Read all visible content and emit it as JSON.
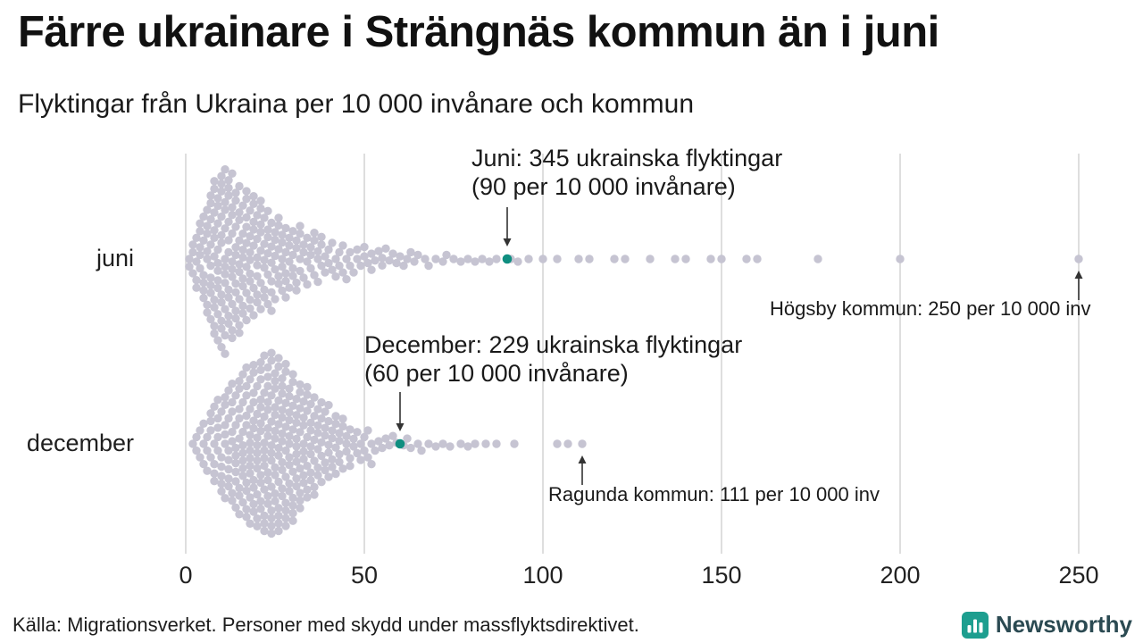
{
  "branding": {
    "name": "Newsworthy"
  },
  "colors": {
    "dot": "#c6c4d2",
    "highlight": "#0f8e80",
    "grid": "#d6d6d6",
    "annotation_arrow": "#333333",
    "logo": "#1d9e8f",
    "logo_text": "#2b4a52",
    "title_text": "#111111"
  },
  "chart_data": {
    "type": "beeswarm",
    "title": "Färre ukrainare i Strängnäs kommun än i juni",
    "subtitle": "Flyktingar från Ukraina per 10 000 invånare och kommun",
    "source": "Källa: Migrationsverket. Personer med skydd under massflyktsdirektivet.",
    "unit": "per 10 000 invånare",
    "x_ticks": [
      0,
      50,
      100,
      150,
      200,
      250
    ],
    "xlim": [
      0,
      250
    ],
    "grid": "vertical",
    "legend": "none",
    "rows": [
      {
        "label": "juni",
        "highlight": {
          "value": 90,
          "refugees": 345,
          "line1": "Juni: 345 ukrainska flyktingar",
          "line2": "(90 per 10 000 invånare)"
        },
        "max_annotation": {
          "value": 250,
          "kommun": "Högsby kommun",
          "text": "Högsby kommun: 250 per 10 000 inv"
        },
        "distribution_value_count_pairs": [
          [
            1,
            2
          ],
          [
            2,
            3
          ],
          [
            3,
            4
          ],
          [
            4,
            5
          ],
          [
            5,
            6
          ],
          [
            6,
            7
          ],
          [
            7,
            9
          ],
          [
            8,
            10
          ],
          [
            9,
            10
          ],
          [
            10,
            11
          ],
          [
            11,
            11
          ],
          [
            12,
            10
          ],
          [
            13,
            10
          ],
          [
            14,
            9
          ],
          [
            15,
            9
          ],
          [
            16,
            8
          ],
          [
            17,
            8
          ],
          [
            18,
            8
          ],
          [
            19,
            7
          ],
          [
            20,
            7
          ],
          [
            21,
            7
          ],
          [
            22,
            6
          ],
          [
            23,
            6
          ],
          [
            24,
            6
          ],
          [
            25,
            5
          ],
          [
            26,
            5
          ],
          [
            27,
            5
          ],
          [
            28,
            5
          ],
          [
            29,
            4
          ],
          [
            30,
            4
          ],
          [
            31,
            4
          ],
          [
            32,
            4
          ],
          [
            33,
            3
          ],
          [
            34,
            3
          ],
          [
            35,
            3
          ],
          [
            36,
            3
          ],
          [
            37,
            3
          ],
          [
            38,
            3
          ],
          [
            39,
            2
          ],
          [
            40,
            2
          ],
          [
            41,
            2
          ],
          [
            42,
            2
          ],
          [
            43,
            2
          ],
          [
            44,
            2
          ],
          [
            45,
            2
          ],
          [
            46,
            2
          ],
          [
            47,
            1
          ],
          [
            48,
            2
          ],
          [
            49,
            1
          ],
          [
            50,
            2
          ],
          [
            51,
            1
          ],
          [
            52,
            2
          ],
          [
            53,
            1
          ],
          [
            54,
            1
          ],
          [
            55,
            2
          ],
          [
            56,
            1
          ],
          [
            57,
            1
          ],
          [
            58,
            1
          ],
          [
            59,
            1
          ],
          [
            60,
            1
          ],
          [
            61,
            1
          ],
          [
            62,
            1
          ],
          [
            63,
            1
          ],
          [
            64,
            1
          ],
          [
            65,
            1
          ],
          [
            67,
            1
          ],
          [
            68,
            1
          ],
          [
            70,
            1
          ],
          [
            72,
            1
          ],
          [
            73,
            1
          ],
          [
            75,
            1
          ],
          [
            77,
            1
          ],
          [
            79,
            1
          ],
          [
            81,
            1
          ],
          [
            83,
            1
          ],
          [
            85,
            1
          ],
          [
            87,
            1
          ],
          [
            91,
            1
          ],
          [
            93,
            1
          ],
          [
            96,
            1
          ],
          [
            100,
            1
          ],
          [
            104,
            1
          ],
          [
            110,
            1
          ],
          [
            113,
            1
          ],
          [
            120,
            1
          ],
          [
            123,
            1
          ],
          [
            130,
            1
          ],
          [
            137,
            1
          ],
          [
            140,
            1
          ],
          [
            147,
            1
          ],
          [
            150,
            1
          ],
          [
            157,
            1
          ],
          [
            160,
            1
          ],
          [
            177,
            1
          ],
          [
            200,
            1
          ],
          [
            250,
            1
          ]
        ]
      },
      {
        "label": "december",
        "highlight": {
          "value": 60,
          "refugees": 229,
          "line1": "December: 229 ukrainska flyktingar",
          "line2": "(60 per 10 000 invånare)"
        },
        "max_annotation": {
          "value": 111,
          "kommun": "Ragunda kommun",
          "text": "Ragunda kommun: 111 per 10 000 inv"
        },
        "distribution_value_count_pairs": [
          [
            2,
            1
          ],
          [
            3,
            2
          ],
          [
            4,
            2
          ],
          [
            5,
            3
          ],
          [
            6,
            3
          ],
          [
            7,
            4
          ],
          [
            8,
            5
          ],
          [
            9,
            5
          ],
          [
            10,
            6
          ],
          [
            11,
            6
          ],
          [
            12,
            7
          ],
          [
            13,
            7
          ],
          [
            14,
            8
          ],
          [
            15,
            8
          ],
          [
            16,
            9
          ],
          [
            17,
            9
          ],
          [
            18,
            10
          ],
          [
            19,
            10
          ],
          [
            20,
            10
          ],
          [
            21,
            11
          ],
          [
            22,
            11
          ],
          [
            23,
            11
          ],
          [
            24,
            12
          ],
          [
            25,
            11
          ],
          [
            26,
            11
          ],
          [
            27,
            11
          ],
          [
            28,
            10
          ],
          [
            29,
            10
          ],
          [
            30,
            9
          ],
          [
            31,
            9
          ],
          [
            32,
            8
          ],
          [
            33,
            8
          ],
          [
            34,
            7
          ],
          [
            35,
            7
          ],
          [
            36,
            6
          ],
          [
            37,
            6
          ],
          [
            38,
            5
          ],
          [
            39,
            5
          ],
          [
            40,
            5
          ],
          [
            41,
            4
          ],
          [
            42,
            4
          ],
          [
            43,
            4
          ],
          [
            44,
            3
          ],
          [
            45,
            3
          ],
          [
            46,
            3
          ],
          [
            47,
            2
          ],
          [
            48,
            2
          ],
          [
            49,
            2
          ],
          [
            50,
            2
          ],
          [
            51,
            2
          ],
          [
            52,
            2
          ],
          [
            53,
            1
          ],
          [
            54,
            1
          ],
          [
            55,
            1
          ],
          [
            56,
            1
          ],
          [
            57,
            1
          ],
          [
            58,
            1
          ],
          [
            59,
            1
          ],
          [
            61,
            1
          ],
          [
            62,
            1
          ],
          [
            63,
            1
          ],
          [
            65,
            1
          ],
          [
            66,
            1
          ],
          [
            68,
            1
          ],
          [
            70,
            1
          ],
          [
            72,
            1
          ],
          [
            74,
            1
          ],
          [
            77,
            1
          ],
          [
            79,
            1
          ],
          [
            81,
            1
          ],
          [
            84,
            1
          ],
          [
            87,
            1
          ],
          [
            92,
            1
          ],
          [
            104,
            1
          ],
          [
            107,
            1
          ],
          [
            111,
            1
          ]
        ]
      }
    ]
  }
}
